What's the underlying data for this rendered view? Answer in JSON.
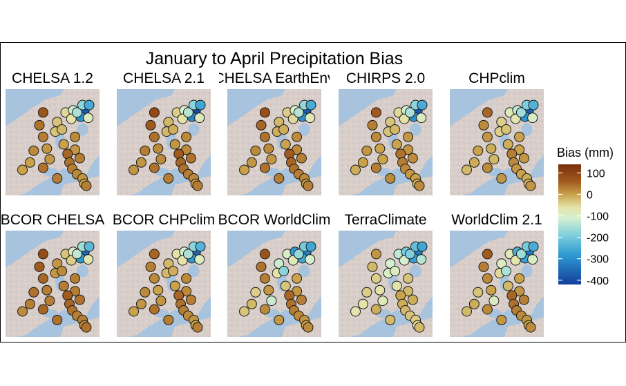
{
  "chart_data": {
    "type": "map",
    "title": "January to April Precipitation Bias",
    "legend": {
      "title": "Bias (mm)",
      "placement": "right",
      "ticks": [
        100,
        0,
        -100,
        -200,
        -300,
        -400
      ],
      "range": [
        -420,
        140
      ],
      "color_stops": [
        {
          "value": 140,
          "color": "#7a2e08"
        },
        {
          "value": 60,
          "color": "#a05a1e"
        },
        {
          "value": 0,
          "color": "#c9a24a"
        },
        {
          "value": -60,
          "color": "#e5e3a8"
        },
        {
          "value": -110,
          "color": "#d6efcf"
        },
        {
          "value": -190,
          "color": "#7fd0dd"
        },
        {
          "value": -280,
          "color": "#2f9ad2"
        },
        {
          "value": -420,
          "color": "#143f9c"
        }
      ]
    },
    "panels": [
      {
        "name": "CHELSA 1.2",
        "bias": [
          70,
          40,
          30,
          10,
          -30,
          -30,
          -20,
          0,
          -50,
          -120,
          -380,
          -300,
          -60,
          -90,
          -150,
          -180,
          -250,
          10,
          20,
          0,
          0,
          40,
          30,
          20,
          10,
          30,
          50,
          40,
          30,
          20,
          10,
          0,
          30
        ]
      },
      {
        "name": "CHELSA 2.1",
        "bias": [
          90,
          60,
          40,
          20,
          -20,
          -20,
          -10,
          10,
          -40,
          -110,
          -400,
          -310,
          -60,
          -80,
          -140,
          -180,
          -260,
          20,
          30,
          10,
          10,
          40,
          30,
          20,
          20,
          40,
          60,
          50,
          40,
          30,
          20,
          10,
          30
        ]
      },
      {
        "name": "CHELSA EarthEnv",
        "bias": [
          80,
          50,
          40,
          20,
          -10,
          -20,
          -10,
          0,
          -40,
          -100,
          -380,
          -300,
          -50,
          -80,
          -140,
          -170,
          -250,
          10,
          20,
          10,
          0,
          40,
          30,
          20,
          20,
          30,
          60,
          50,
          40,
          30,
          20,
          10,
          30
        ]
      },
      {
        "name": "CHIRPS 2.0",
        "bias": [
          60,
          30,
          20,
          0,
          -30,
          -30,
          -20,
          0,
          -50,
          -120,
          -380,
          -300,
          -60,
          -90,
          -150,
          -180,
          -250,
          0,
          10,
          0,
          -10,
          30,
          20,
          10,
          10,
          20,
          40,
          30,
          20,
          10,
          0,
          -10,
          20
        ]
      },
      {
        "name": "CHPclim",
        "bias": [
          50,
          20,
          10,
          -10,
          -40,
          -40,
          -30,
          -10,
          -80,
          -130,
          -370,
          -290,
          -70,
          -100,
          -160,
          -190,
          -240,
          -20,
          0,
          -10,
          -20,
          20,
          10,
          0,
          0,
          10,
          30,
          20,
          10,
          0,
          -10,
          -20,
          10
        ]
      },
      {
        "name": "BCOR CHELSA",
        "bias": [
          80,
          60,
          50,
          30,
          10,
          10,
          20,
          30,
          -30,
          -90,
          -360,
          -280,
          -40,
          -70,
          -130,
          -160,
          -230,
          30,
          40,
          30,
          20,
          50,
          40,
          30,
          30,
          40,
          60,
          50,
          40,
          30,
          30,
          20,
          40
        ]
      },
      {
        "name": "BCOR CHPclim",
        "bias": [
          50,
          30,
          20,
          0,
          -20,
          -20,
          -10,
          0,
          -60,
          -110,
          -360,
          -280,
          -60,
          -90,
          -150,
          -180,
          -240,
          10,
          20,
          10,
          0,
          40,
          30,
          20,
          20,
          30,
          50,
          40,
          30,
          20,
          10,
          0,
          30
        ]
      },
      {
        "name": "BCOR WorldClim",
        "bias": [
          70,
          40,
          30,
          10,
          -60,
          -120,
          -180,
          -30,
          -100,
          -280,
          -320,
          -260,
          -80,
          -110,
          -170,
          -200,
          -260,
          -120,
          -40,
          -20,
          -30,
          20,
          10,
          0,
          10,
          30,
          50,
          40,
          30,
          20,
          10,
          0,
          20
        ]
      },
      {
        "name": "TerraClimate",
        "bias": [
          10,
          -20,
          -40,
          -60,
          -100,
          -110,
          -90,
          -60,
          -130,
          -200,
          -330,
          -270,
          -110,
          -140,
          -190,
          -220,
          -260,
          -80,
          -40,
          -60,
          -70,
          -10,
          -20,
          -30,
          -20,
          -10,
          0,
          -10,
          -20,
          -30,
          -40,
          -50,
          -20
        ]
      },
      {
        "name": "WorldClim 2.1",
        "bias": [
          60,
          30,
          20,
          0,
          -50,
          -90,
          -150,
          -20,
          -80,
          -250,
          -330,
          -270,
          -70,
          -100,
          -160,
          -200,
          -250,
          -90,
          -30,
          -10,
          -20,
          20,
          10,
          0,
          10,
          30,
          50,
          40,
          30,
          20,
          10,
          0,
          20
        ]
      }
    ]
  }
}
